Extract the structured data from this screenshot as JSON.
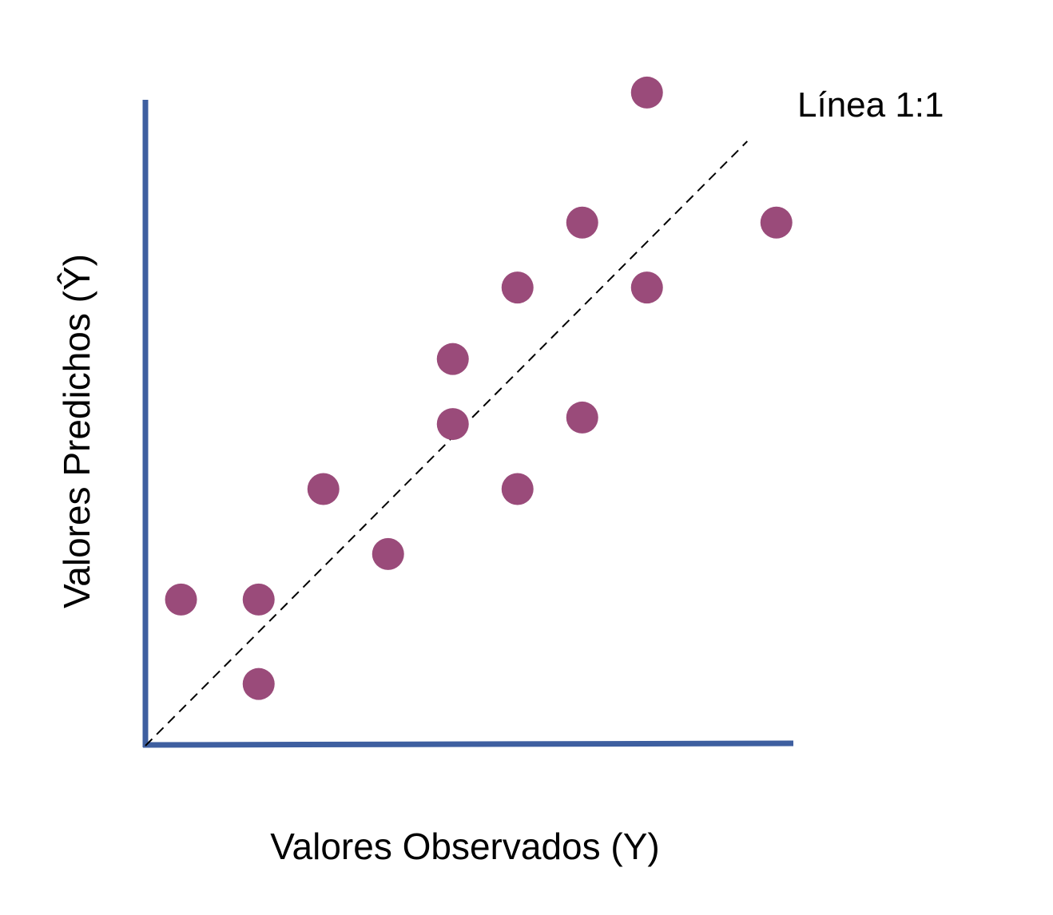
{
  "chart_data": {
    "type": "scatter",
    "title": "",
    "xlabel": "Valores Observados (Y)",
    "ylabel": "Valores Predichos (Ŷ)",
    "xlim": [
      0,
      10
    ],
    "ylim": [
      0,
      10
    ],
    "grid": false,
    "ticks": false,
    "series": [
      {
        "points": [
          {
            "x": 0.55,
            "y": 2.25
          },
          {
            "x": 1.75,
            "y": 2.25
          },
          {
            "x": 1.75,
            "y": 0.95
          },
          {
            "x": 2.75,
            "y": 3.95
          },
          {
            "x": 3.75,
            "y": 2.95
          },
          {
            "x": 4.75,
            "y": 4.95
          },
          {
            "x": 4.75,
            "y": 5.95
          },
          {
            "x": 5.75,
            "y": 3.95
          },
          {
            "x": 5.75,
            "y": 7.05
          },
          {
            "x": 6.75,
            "y": 5.05
          },
          {
            "x": 6.75,
            "y": 8.05
          },
          {
            "x": 7.75,
            "y": 7.05
          },
          {
            "x": 7.75,
            "y": 10.05
          },
          {
            "x": 9.75,
            "y": 8.05
          }
        ]
      }
    ],
    "reference_line": {
      "label": "Línea 1:1",
      "from": [
        0,
        0
      ],
      "to": [
        9.3,
        9.3
      ],
      "style": "dashed"
    },
    "colors": {
      "axis": "#3e5fa0",
      "point": "#9a4b7a",
      "reference_line": "#000000"
    }
  }
}
